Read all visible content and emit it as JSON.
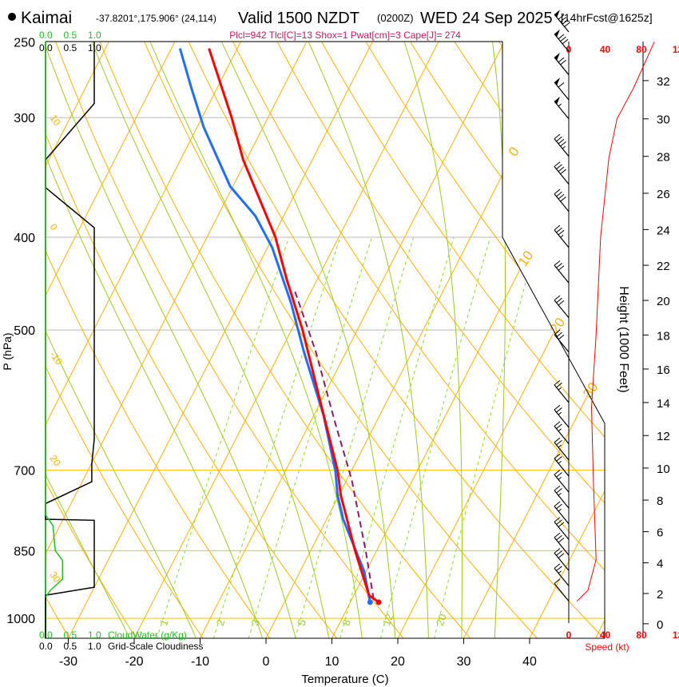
{
  "header": {
    "station": "Kaimai",
    "coords": "-37.8201°,175.906° (24,114)",
    "valid": "Valid 1500 NZDT",
    "utc": "(0200Z)",
    "date": "WED 24 Sep 2025",
    "forecast": "[14hrFcst@1625z]",
    "indices": "Plcl=942 Tlcl[C]=13 Shox=1 Pwat[cm]=3 Cape[J]= 274"
  },
  "colors": {
    "temp": "#ff0000",
    "dew": "#1e6eff",
    "parcel": "#8b1a6b",
    "isotherm": "#ffb000",
    "moist": "#99cc22",
    "mix": "#88dd22",
    "cloudwater": "#22bb22",
    "speed": "#ff0000",
    "indices": "#c0185a"
  },
  "chart_data": {
    "type": "line",
    "title": "Skew-T log-P sounding",
    "xlabel": "Temperature (C)",
    "ylabel": "P (hPa)",
    "y2label": "Height (1000 Feet)",
    "xticks": [
      -30,
      -20,
      -10,
      0,
      10,
      20,
      30,
      40
    ],
    "pressure_levels": [
      250,
      300,
      400,
      500,
      700,
      850,
      1000
    ],
    "height_ticks": [
      0,
      2,
      4,
      6,
      8,
      10,
      12,
      14,
      16,
      18,
      20,
      22,
      24,
      26,
      28,
      30,
      32
    ],
    "speed_ticks_top": [
      "0",
      "40",
      "80",
      "12"
    ],
    "speed_ticks_bottom": [
      "0",
      "40",
      "80",
      "12"
    ],
    "speed_label": "Speed (kt)",
    "cloud_ticks": [
      "0.0",
      "0.5",
      "1.0"
    ],
    "cloudwater_label": "CloudWater (g/Kg)",
    "cloudiness_label": "Grid-Scale Cloudiness",
    "mixing_ratio_labels": [
      "1",
      "2",
      "3",
      "5",
      "8",
      "12",
      "20"
    ],
    "mixing_ratios": [
      1,
      2,
      3,
      5,
      8,
      12,
      20
    ],
    "theta_labels": [
      {
        "t": "10",
        "p": 300
      },
      {
        "t": "0",
        "p": 390
      },
      {
        "t": "-10",
        "p": 530
      },
      {
        "t": "20",
        "p": 680
      },
      {
        "t": "30",
        "p": 900
      }
    ],
    "isotherm_labels": [
      "0",
      "10",
      "20",
      "30"
    ],
    "temperature": [
      [
        962,
        14.3
      ],
      [
        946,
        12.3
      ],
      [
        851,
        6.8
      ],
      [
        744,
        0.3
      ],
      [
        701,
        -2.1
      ],
      [
        591,
        -10.3
      ],
      [
        500,
        -18.3
      ],
      [
        443,
        -24.6
      ],
      [
        400,
        -29.6
      ],
      [
        332,
        -40.5
      ],
      [
        300,
        -45.5
      ],
      [
        254,
        -54.3
      ]
    ],
    "dewpoint": [
      [
        962,
        13.0
      ],
      [
        893,
        9.7
      ],
      [
        788,
        2.5
      ],
      [
        744,
        -0.2
      ],
      [
        702,
        -2.4
      ],
      [
        614,
        -8.5
      ],
      [
        526,
        -16.5
      ],
      [
        469,
        -22.1
      ],
      [
        410,
        -29.3
      ],
      [
        380,
        -34.3
      ],
      [
        354,
        -40.4
      ],
      [
        307,
        -49
      ],
      [
        280,
        -53.8
      ],
      [
        254,
        -58.7
      ]
    ],
    "parcel": [
      [
        955,
        13.3
      ],
      [
        851,
        8.4
      ],
      [
        716,
        0.7
      ],
      [
        626,
        -6.1
      ],
      [
        526,
        -14.7
      ],
      [
        456,
        -22.4
      ]
    ],
    "cloudiness": [
      [
        1,
        250
      ],
      [
        1,
        290
      ],
      [
        0,
        332
      ],
      [
        0,
        355
      ],
      [
        1,
        391
      ],
      [
        1,
        650
      ],
      [
        0.95,
        690
      ],
      [
        0.95,
        720
      ],
      [
        0,
        759
      ],
      [
        0,
        788
      ],
      [
        1,
        790
      ],
      [
        1,
        928
      ],
      [
        0,
        946
      ],
      [
        0,
        1050
      ]
    ],
    "cloudwater": [
      [
        0,
        250
      ],
      [
        0,
        780
      ],
      [
        0.15,
        800
      ],
      [
        0.2,
        850
      ],
      [
        0.35,
        870
      ],
      [
        0.35,
        910
      ],
      [
        0.1,
        935
      ],
      [
        0,
        950
      ]
    ],
    "wind_speed_profile": [
      [
        9,
        1.5
      ],
      [
        21,
        2.2
      ],
      [
        30,
        4.2
      ],
      [
        27,
        9.3
      ],
      [
        25,
        13.7
      ],
      [
        30,
        18
      ],
      [
        35,
        23.6
      ],
      [
        44,
        27.9
      ],
      [
        53,
        30
      ],
      [
        71,
        31.6
      ],
      [
        94,
        34
      ]
    ],
    "wind_barbs": [
      [
        1.5,
        10
      ],
      [
        2.5,
        25
      ],
      [
        3.5,
        30
      ],
      [
        4.5,
        30
      ],
      [
        5.5,
        30
      ],
      [
        6.5,
        28
      ],
      [
        7.5,
        28
      ],
      [
        8.5,
        27
      ],
      [
        9.5,
        27
      ],
      [
        10.5,
        26
      ],
      [
        11.5,
        25
      ],
      [
        12.5,
        25
      ],
      [
        14,
        25
      ],
      [
        17,
        30
      ],
      [
        19,
        30
      ],
      [
        21,
        32
      ],
      [
        23,
        35
      ],
      [
        25,
        40
      ],
      [
        26.5,
        42
      ],
      [
        28,
        45
      ],
      [
        30,
        55
      ],
      [
        31,
        60
      ],
      [
        32.3,
        70
      ],
      [
        33.5,
        80
      ],
      [
        34.5,
        90
      ]
    ]
  }
}
